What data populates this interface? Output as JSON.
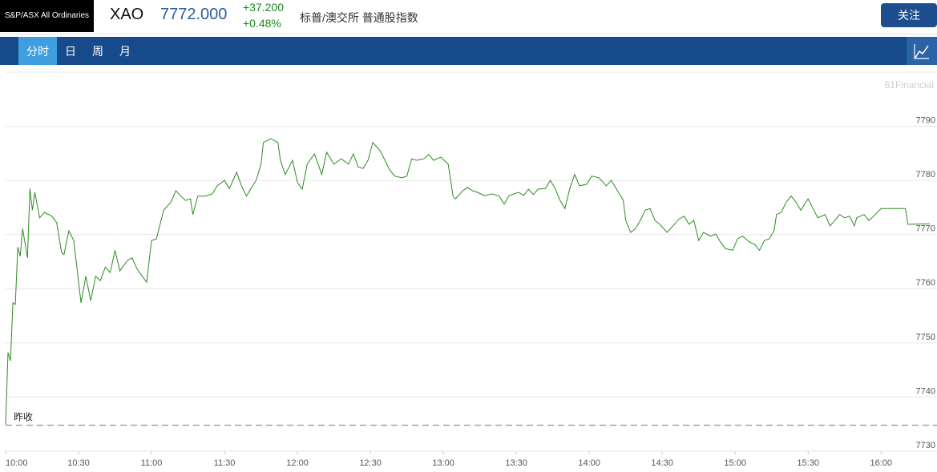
{
  "header": {
    "logo_text": "S&P/ASX All Ordinaries",
    "symbol": "XAO",
    "price": "7772.000",
    "change": "+37.200",
    "change_pct": "+0.48%",
    "name": "标普/澳交所 普通股指数",
    "button": "关注"
  },
  "tabs": [
    "分时",
    "日",
    "周",
    "月"
  ],
  "chart_data": {
    "type": "line",
    "watermark": "61Financial",
    "color": "#2e8b22",
    "x": [
      0,
      1,
      2,
      3,
      4,
      5,
      6,
      7,
      9,
      10,
      11,
      12,
      14,
      16,
      19,
      21,
      23,
      24,
      26,
      28,
      31,
      33,
      35,
      37,
      39,
      41,
      43,
      45,
      47,
      50,
      52,
      54,
      57,
      58,
      60,
      62,
      65,
      68,
      70,
      72,
      74,
      76,
      77,
      79,
      82,
      85,
      87,
      90,
      92,
      95,
      97,
      99,
      103,
      105,
      106,
      109,
      112,
      113,
      115,
      118,
      120,
      122,
      124,
      127,
      130,
      132,
      135,
      138,
      141,
      143,
      145,
      147,
      149,
      151,
      154,
      156,
      158,
      160,
      163,
      165,
      167,
      169,
      172,
      174,
      176,
      179,
      182,
      184,
      185,
      188,
      190,
      192,
      194,
      197,
      200,
      203,
      205,
      207,
      211,
      213,
      215,
      217,
      219,
      222,
      224,
      226,
      228,
      230,
      232,
      234,
      236,
      239,
      241,
      244,
      247,
      249,
      252,
      254,
      255,
      257,
      259,
      261,
      263,
      265,
      267,
      269,
      272,
      274,
      277,
      279,
      281,
      283,
      285,
      287,
      290,
      292,
      294,
      296,
      299,
      301,
      303,
      306,
      308,
      310,
      312,
      314,
      316,
      317,
      319,
      321,
      323,
      325,
      327,
      330,
      332,
      334,
      337,
      339,
      341,
      343,
      345,
      347,
      349,
      350,
      353,
      355,
      357,
      360,
      370,
      371,
      380
    ],
    "values": [
      7734.9,
      7748.2,
      7746.7,
      7757.4,
      7757.1,
      7767.7,
      7766.0,
      7771.1,
      7765.7,
      7778.5,
      7774.5,
      7777.8,
      7773.1,
      7774.1,
      7773.4,
      7772.2,
      7766.7,
      7766.3,
      7770.7,
      7768.9,
      7757.4,
      7762.3,
      7757.8,
      7762.3,
      7761.5,
      7764.0,
      7763.0,
      7767.1,
      7763.3,
      7765.2,
      7765.7,
      7763.7,
      7761.8,
      7761.2,
      7768.9,
      7769.2,
      7774.5,
      7776.0,
      7778.1,
      7777.1,
      7776.3,
      7776.6,
      7773.7,
      7777.1,
      7777.1,
      7777.5,
      7779.0,
      7780.0,
      7778.5,
      7781.5,
      7779.0,
      7777.1,
      7780.0,
      7783.0,
      7787.0,
      7787.7,
      7787.0,
      7783.7,
      7781.1,
      7783.7,
      7779.6,
      7778.4,
      7783.0,
      7784.9,
      7781.1,
      7785.2,
      7783.0,
      7784.0,
      7783.0,
      7784.9,
      7782.5,
      7782.2,
      7783.7,
      7787.0,
      7785.5,
      7783.7,
      7781.9,
      7780.8,
      7780.5,
      7780.8,
      7784.0,
      7783.7,
      7784.0,
      7784.8,
      7783.7,
      7784.3,
      7783.0,
      7777.1,
      7776.6,
      7778.1,
      7778.7,
      7778.1,
      7777.8,
      7777.2,
      7777.5,
      7777.1,
      7775.6,
      7777.2,
      7777.8,
      7777.2,
      7778.4,
      7777.4,
      7778.4,
      7778.5,
      7780.0,
      7778.5,
      7776.3,
      7774.8,
      7778.5,
      7781.1,
      7779.0,
      7779.3,
      7780.8,
      7780.5,
      7779.0,
      7780.0,
      7777.8,
      7776.3,
      7772.6,
      7770.4,
      7771.1,
      7772.6,
      7774.5,
      7774.8,
      7772.6,
      7771.9,
      7770.4,
      7771.4,
      7772.9,
      7773.4,
      7771.9,
      7772.6,
      7768.9,
      7770.4,
      7769.7,
      7770.1,
      7768.6,
      7767.4,
      7767.1,
      7769.2,
      7769.7,
      7768.6,
      7768.2,
      7767.1,
      7768.9,
      7769.2,
      7770.7,
      7773.7,
      7774.1,
      7776.0,
      7777.1,
      7776.0,
      7774.5,
      7776.6,
      7774.8,
      7773.1,
      7773.7,
      7771.6,
      7772.6,
      7773.7,
      7773.1,
      7773.4,
      7771.6,
      7773.1,
      7773.7,
      7772.6,
      7773.4,
      7774.8,
      7774.8,
      7771.9,
      7772.0
    ],
    "xlim": [
      0,
      383
    ],
    "xticks": [
      {
        "value": 0,
        "label": "10:00"
      },
      {
        "value": 30,
        "label": "10:30"
      },
      {
        "value": 60,
        "label": "11:00"
      },
      {
        "value": 90,
        "label": "11:30"
      },
      {
        "value": 120,
        "label": "12:00"
      },
      {
        "value": 150,
        "label": "12:30"
      },
      {
        "value": 180,
        "label": "13:00"
      },
      {
        "value": 210,
        "label": "13:30"
      },
      {
        "value": 240,
        "label": "14:00"
      },
      {
        "value": 270,
        "label": "14:30"
      },
      {
        "value": 300,
        "label": "15:00"
      },
      {
        "value": 330,
        "label": "15:30"
      },
      {
        "value": 360,
        "label": "16:00"
      }
    ],
    "ylim": [
      7730,
      7800
    ],
    "yticks": [
      7730,
      7740,
      7750,
      7760,
      7770,
      7780,
      7790
    ],
    "grid": true,
    "prev_close": 7734.8,
    "prev_close_label": "昨收"
  }
}
